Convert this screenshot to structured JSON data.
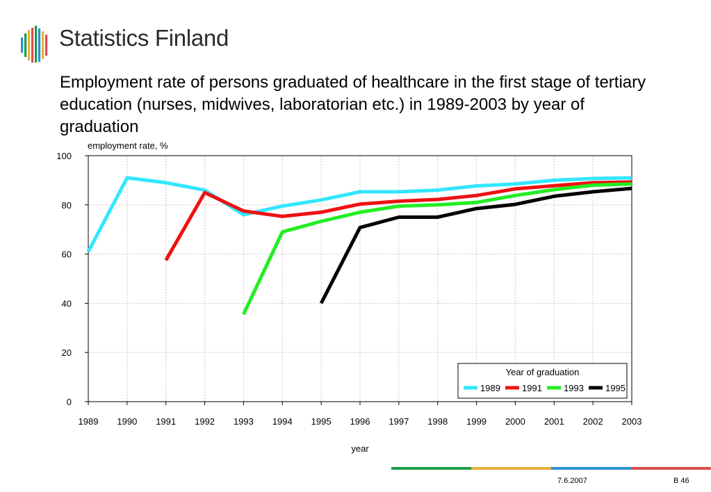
{
  "brand": {
    "name": "Statistics Finland"
  },
  "slide": {
    "title": "Employment rate of persons graduated of healthcare in the first stage of tertiary education (nurses, midwives, laboratorian etc.) in 1989-2003 by year of graduation"
  },
  "chart_data": {
    "type": "line",
    "title": "",
    "xlabel": "year",
    "ylabel": "employment rate, %",
    "x": [
      1989,
      1990,
      1991,
      1992,
      1993,
      1994,
      1995,
      1996,
      1997,
      1998,
      1999,
      2000,
      2001,
      2002,
      2003
    ],
    "xlim": [
      1989,
      2003
    ],
    "ylim": [
      0,
      100
    ],
    "yticks": [
      0,
      20,
      40,
      60,
      80,
      100
    ],
    "grid": true,
    "legend": {
      "title": "Year of graduation",
      "placement": "bottom-right"
    },
    "series": [
      {
        "name": "1989",
        "color": "#33e6ff",
        "values": [
          61,
          91,
          89,
          86,
          76,
          79.5,
          82,
          85.3,
          85.3,
          86,
          87.7,
          88.5,
          90,
          90.7,
          91
        ]
      },
      {
        "name": "1991",
        "color": "#ee1111",
        "values": [
          null,
          null,
          57.5,
          85,
          77.5,
          75.3,
          77,
          80.3,
          81.5,
          82.2,
          83.8,
          86.5,
          87.8,
          89,
          89.3
        ]
      },
      {
        "name": "1993",
        "color": "#22ee22",
        "values": [
          null,
          null,
          null,
          null,
          35.5,
          69,
          73.3,
          77,
          79.5,
          80,
          81,
          83.8,
          86.2,
          88,
          88.5
        ]
      },
      {
        "name": "1995",
        "color": "#000000",
        "values": [
          null,
          null,
          null,
          null,
          null,
          null,
          40,
          70.8,
          75,
          75,
          78.5,
          80.2,
          83.5,
          85.3,
          86.7
        ]
      }
    ]
  },
  "footer": {
    "date": "7.6.2007",
    "page": "B 46",
    "bar_colors": [
      "#1e9c48",
      "#e8b13a",
      "#2a8fd0",
      "#d94d4d"
    ]
  }
}
